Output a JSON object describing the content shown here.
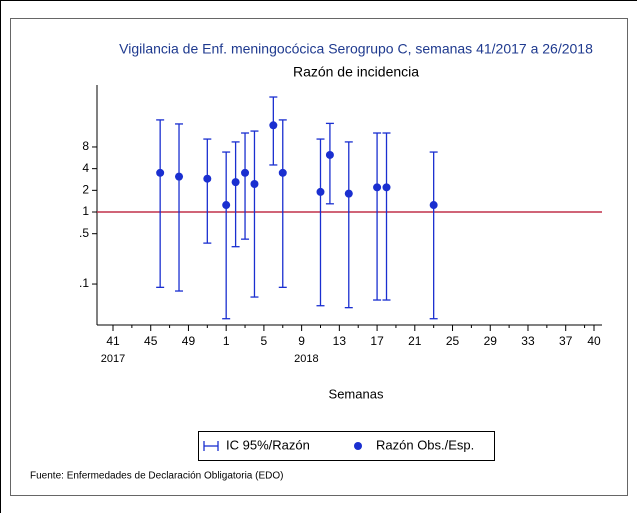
{
  "chart_data": {
    "type": "errorbar",
    "title": "Vigilancia de Enf. meningocócica Serogrupo C, semanas 41/2017 a 26/2018",
    "subtitle": "Razón de incidencia",
    "x_label": "Semanas",
    "source": "Fuente: Enfermedades de Declaración Obligatoria (EDO)",
    "x_group_labels": [
      "2017",
      "2018"
    ],
    "categories": [
      "41",
      null,
      null,
      null,
      "45",
      null,
      null,
      null,
      "49",
      null,
      null,
      null,
      "1",
      null,
      null,
      null,
      "5",
      null,
      null,
      null,
      "9",
      null,
      null,
      null,
      "13",
      null,
      null,
      null,
      "17",
      null,
      null,
      null,
      "21",
      null,
      null,
      null,
      "25",
      null,
      null,
      null,
      "29",
      null,
      null,
      null,
      "33",
      null,
      null,
      null,
      "37",
      null,
      null,
      "40"
    ],
    "y_scale": "log",
    "ylim": [
      0.027,
      58
    ],
    "yticks": [
      {
        "value": 0.1,
        "label": ".1"
      },
      {
        "value": 0.5,
        "label": ".5"
      },
      1,
      2,
      4,
      8
    ],
    "reference_line": {
      "value": 1,
      "color": "#c0304a"
    },
    "series": [
      {
        "name": "IC 95%/Razón",
        "color": "#1a2fd0",
        "lower": [
          null,
          null,
          null,
          null,
          null,
          0.09,
          null,
          0.08,
          null,
          null,
          0.37,
          null,
          0.033,
          0.33,
          0.42,
          0.066,
          null,
          4.5,
          0.09,
          null,
          null,
          null,
          0.05,
          1.3,
          null,
          0.047,
          null,
          null,
          0.06,
          0.06,
          null,
          null,
          null,
          null,
          0.033,
          null,
          null,
          null,
          null,
          null,
          null,
          null,
          null,
          null,
          null,
          null,
          null,
          null,
          null,
          null,
          null,
          null
        ],
        "upper": [
          null,
          null,
          null,
          null,
          null,
          19,
          null,
          16.7,
          null,
          null,
          10.3,
          null,
          6.8,
          9.4,
          12.5,
          13.3,
          null,
          39.5,
          19,
          null,
          null,
          null,
          10.3,
          17,
          null,
          9.4,
          null,
          null,
          12.5,
          12.5,
          null,
          null,
          null,
          null,
          6.8,
          null,
          null,
          null,
          null,
          null,
          null,
          null,
          null,
          null,
          null,
          null,
          null,
          null,
          null,
          null,
          null,
          null
        ]
      },
      {
        "name": "Razón Obs./Esp.",
        "color": "#1a2fd0",
        "values": [
          null,
          null,
          null,
          null,
          null,
          3.5,
          null,
          3.1,
          null,
          null,
          2.9,
          null,
          1.25,
          2.6,
          3.5,
          2.45,
          null,
          16,
          3.5,
          null,
          null,
          null,
          1.9,
          6.2,
          null,
          1.8,
          null,
          null,
          2.2,
          2.2,
          null,
          null,
          null,
          null,
          1.25,
          null,
          null,
          null,
          null,
          null,
          null,
          null,
          null,
          null,
          null,
          null,
          null,
          null,
          null,
          null,
          null,
          null
        ]
      }
    ]
  }
}
